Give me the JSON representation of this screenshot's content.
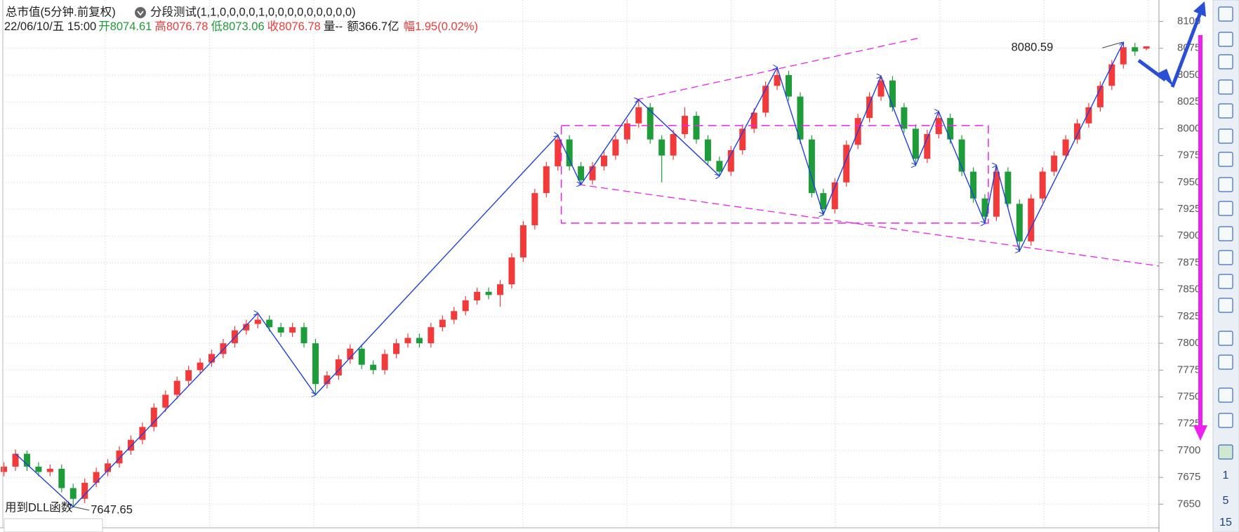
{
  "header": {
    "title": "总市值(5分钟.前复权)",
    "indicator": "分段测试(1,1,0,0,0,0,1,0,0,0,0,0,0,0,0,0)"
  },
  "quote": {
    "datetime": "22/06/10/五 15:00",
    "open_label": "开",
    "open": 8074.61,
    "high_label": "高",
    "high": 8076.78,
    "low_label": "低",
    "low": 8073.06,
    "close_label": "收",
    "close": 8076.78,
    "volume": "量--",
    "amount": "额366.7亿",
    "change_label": "幅",
    "change": "1.95(0.02%)"
  },
  "toolbar": [
    "1",
    "5",
    "15"
  ],
  "chart_data": {
    "type": "candlestick",
    "ylim": [
      7628,
      8120
    ],
    "yticks": [
      7650,
      7675,
      7700,
      7725,
      7750,
      7775,
      7800,
      7825,
      7850,
      7875,
      7900,
      7925,
      7950,
      7975,
      8000,
      8025,
      8050,
      8075,
      8100
    ],
    "grid": true,
    "up_color": "#f23a3a",
    "down_color": "#1e9c3a",
    "candles": [
      [
        7680,
        7689,
        7676,
        7685
      ],
      [
        7685,
        7701,
        7681,
        7697
      ],
      [
        7697,
        7700,
        7681,
        7685
      ],
      [
        7685,
        7689,
        7676,
        7680
      ],
      [
        7680,
        7687,
        7676,
        7683
      ],
      [
        7683,
        7687,
        7661,
        7665
      ],
      [
        7665,
        7669,
        7647.65,
        7655
      ],
      [
        7655,
        7674,
        7651,
        7670
      ],
      [
        7670,
        7684,
        7666,
        7680
      ],
      [
        7680,
        7692,
        7676,
        7688
      ],
      [
        7688,
        7704,
        7684,
        7700
      ],
      [
        7700,
        7714,
        7696,
        7710
      ],
      [
        7710,
        7726,
        7706,
        7722
      ],
      [
        7722,
        7744,
        7718,
        7740
      ],
      [
        7740,
        7756,
        7736,
        7752
      ],
      [
        7752,
        7769,
        7748,
        7765
      ],
      [
        7765,
        7779,
        7761,
        7775
      ],
      [
        7775,
        7786,
        7771,
        7782
      ],
      [
        7782,
        7794,
        7778,
        7790
      ],
      [
        7790,
        7804,
        7786,
        7800
      ],
      [
        7800,
        7816,
        7796,
        7812
      ],
      [
        7812,
        7822,
        7808,
        7818
      ],
      [
        7818,
        7828,
        7814,
        7822
      ],
      [
        7822,
        7826,
        7811,
        7815
      ],
      [
        7815,
        7819,
        7806,
        7810
      ],
      [
        7810,
        7819,
        7806,
        7815
      ],
      [
        7815,
        7819,
        7796,
        7800
      ],
      [
        7800,
        7804,
        7752,
        7762
      ],
      [
        7762,
        7774,
        7758,
        7770
      ],
      [
        7770,
        7789,
        7766,
        7785
      ],
      [
        7785,
        7799,
        7781,
        7795
      ],
      [
        7795,
        7799,
        7776,
        7780
      ],
      [
        7780,
        7784,
        7771,
        7775
      ],
      [
        7775,
        7794,
        7771,
        7790
      ],
      [
        7790,
        7804,
        7786,
        7800
      ],
      [
        7800,
        7809,
        7796,
        7805
      ],
      [
        7805,
        7809,
        7796,
        7800
      ],
      [
        7800,
        7819,
        7796,
        7815
      ],
      [
        7815,
        7826,
        7811,
        7822
      ],
      [
        7822,
        7834,
        7818,
        7830
      ],
      [
        7830,
        7844,
        7826,
        7840
      ],
      [
        7840,
        7852,
        7836,
        7848
      ],
      [
        7848,
        7852,
        7841,
        7845
      ],
      [
        7845,
        7859,
        7834,
        7855
      ],
      [
        7855,
        7884,
        7851,
        7880
      ],
      [
        7880,
        7914,
        7876,
        7910
      ],
      [
        7910,
        7944,
        7906,
        7940
      ],
      [
        7940,
        7969,
        7936,
        7965
      ],
      [
        7965,
        7994,
        7961,
        7990
      ],
      [
        7990,
        7994,
        7961,
        7965
      ],
      [
        7965,
        7969,
        7948,
        7952
      ],
      [
        7952,
        7969,
        7948,
        7965
      ],
      [
        7965,
        7979,
        7961,
        7975
      ],
      [
        7975,
        7994,
        7971,
        7990
      ],
      [
        7990,
        8009,
        7986,
        8005
      ],
      [
        8005,
        8027,
        8001,
        8020
      ],
      [
        8020,
        8024,
        7986,
        7990
      ],
      [
        7990,
        7994,
        7950,
        7975
      ],
      [
        7975,
        7999,
        7971,
        7995
      ],
      [
        7995,
        8020,
        7991,
        8012
      ],
      [
        8012,
        8016,
        7986,
        7990
      ],
      [
        7990,
        7994,
        7966,
        7970
      ],
      [
        7970,
        7974,
        7956,
        7960
      ],
      [
        7960,
        7984,
        7956,
        7980
      ],
      [
        7980,
        8004,
        7976,
        8000
      ],
      [
        8000,
        8019,
        7996,
        8015
      ],
      [
        8015,
        8044,
        8011,
        8040
      ],
      [
        8040,
        8057,
        8036,
        8050
      ],
      [
        8050,
        8054,
        8026,
        8030
      ],
      [
        8030,
        8034,
        7986,
        7990
      ],
      [
        7990,
        7994,
        7936,
        7940
      ],
      [
        7940,
        7944,
        7920,
        7925
      ],
      [
        7925,
        7954,
        7921,
        7950
      ],
      [
        7950,
        7989,
        7946,
        7985
      ],
      [
        7985,
        8014,
        7981,
        8010
      ],
      [
        8010,
        8034,
        8006,
        8030
      ],
      [
        8030,
        8049,
        8026,
        8045
      ],
      [
        8045,
        8049,
        8016,
        8020
      ],
      [
        8020,
        8024,
        7996,
        8000
      ],
      [
        8000,
        8004,
        7966,
        7972
      ],
      [
        7972,
        7999,
        7968,
        7995
      ],
      [
        7995,
        8016,
        7991,
        8010
      ],
      [
        8010,
        8014,
        7986,
        7990
      ],
      [
        7990,
        7994,
        7956,
        7960
      ],
      [
        7960,
        7964,
        7931,
        7935
      ],
      [
        7935,
        7939,
        7912,
        7918
      ],
      [
        7918,
        7966,
        7914,
        7960
      ],
      [
        7960,
        7964,
        7926,
        7930
      ],
      [
        7930,
        7934,
        7886,
        7895
      ],
      [
        7895,
        7939,
        7891,
        7935
      ],
      [
        7935,
        7964,
        7931,
        7960
      ],
      [
        7960,
        7979,
        7956,
        7975
      ],
      [
        7975,
        7994,
        7971,
        7990
      ],
      [
        7990,
        8009,
        7986,
        8005
      ],
      [
        8005,
        8024,
        8001,
        8020
      ],
      [
        8020,
        8044,
        8016,
        8040
      ],
      [
        8040,
        8064,
        8036,
        8060
      ],
      [
        8060,
        8080.59,
        8056,
        8076
      ],
      [
        8076,
        8080,
        8068,
        8072
      ],
      [
        8074.61,
        8076.78,
        8073.06,
        8076.78
      ]
    ],
    "zigzag": {
      "color": "#1f3fe0",
      "x": [
        1,
        6,
        22,
        27,
        48,
        50,
        55,
        62,
        67,
        71,
        76,
        79,
        81,
        85,
        86,
        88,
        97
      ],
      "values": [
        7697,
        7647.65,
        7828,
        7752,
        7994,
        7948,
        8027,
        7956,
        8057,
        7920,
        8049,
        7966,
        8016,
        7912,
        7966,
        7886,
        8080.59
      ]
    },
    "trendlines": {
      "color": "#ee22ee",
      "lines": [
        {
          "x": [
            54.8,
            79.5
          ],
          "values": [
            8027,
            8085
          ]
        },
        {
          "x": [
            49.8,
            100.1
          ],
          "values": [
            7948,
            7872
          ]
        }
      ],
      "box": {
        "x": [
          48.3,
          85.3
        ],
        "values": [
          8003,
          7912
        ]
      }
    },
    "annotations": [
      {
        "x": 97,
        "value": 8080.59
      },
      {
        "x": 6,
        "value": 7647.65
      }
    ],
    "footnote": "用到DLL函数"
  }
}
